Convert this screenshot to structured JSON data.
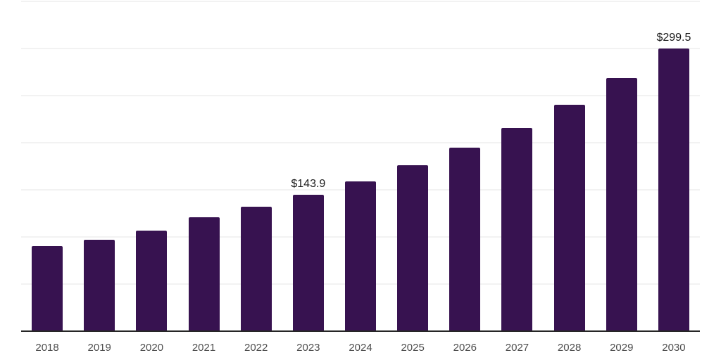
{
  "chart_data": {
    "type": "bar",
    "title": "",
    "xlabel": "",
    "ylabel": "",
    "categories": [
      "2018",
      "2019",
      "2020",
      "2021",
      "2022",
      "2023",
      "2024",
      "2025",
      "2026",
      "2027",
      "2028",
      "2029",
      "2030"
    ],
    "values": [
      89.4,
      96.6,
      106.3,
      119.9,
      131.6,
      143.9,
      158.4,
      175.7,
      193.8,
      215.3,
      239.4,
      267.9,
      299.5
    ],
    "data_labels": {
      "2023": "$143.9",
      "2030": "$299.5"
    },
    "ylim": [
      0,
      350
    ],
    "gridline_step": 50,
    "grid": "horizontal-only",
    "legend": "none",
    "y_axis_labels_visible": false,
    "colors": {
      "bar": "#371250",
      "gridline": "#f2f2f2",
      "axis_line": "#262626",
      "tick_label": "#4d4d4d",
      "data_label": "#1a1a1a",
      "background": "#ffffff"
    }
  }
}
